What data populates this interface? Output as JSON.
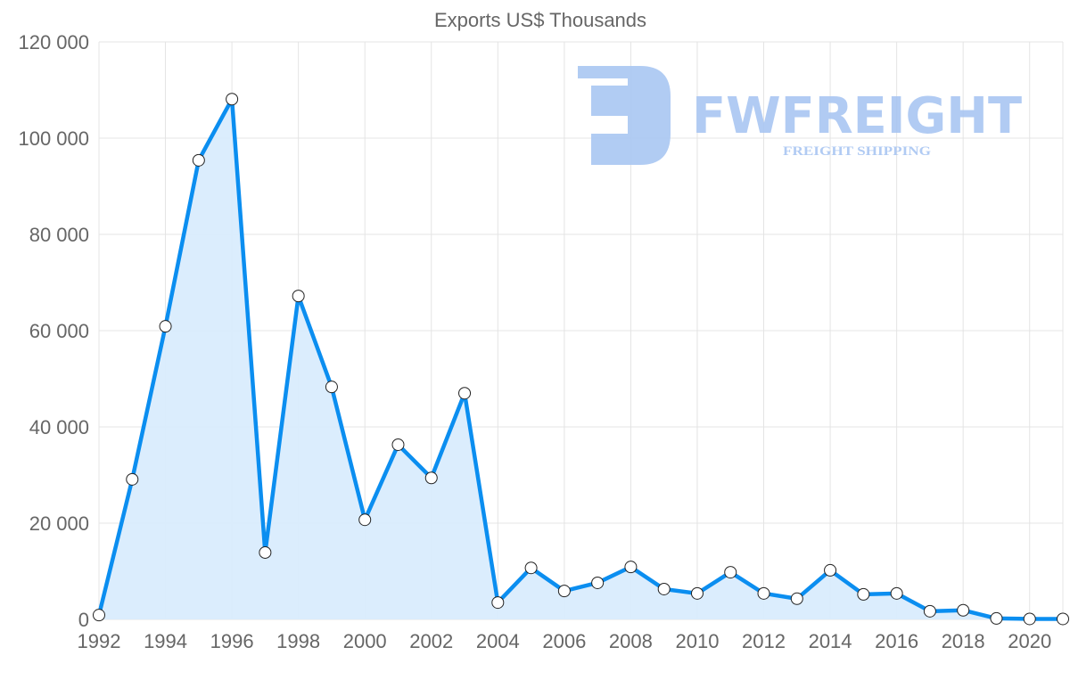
{
  "chart_data": {
    "type": "line",
    "title": "Exports US$ Thousands",
    "xlabel": "",
    "ylabel": "",
    "x": [
      1992,
      1993,
      1994,
      1995,
      1996,
      1997,
      1998,
      1999,
      2000,
      2001,
      2002,
      2003,
      2004,
      2005,
      2006,
      2007,
      2008,
      2009,
      2010,
      2011,
      2012,
      2013,
      2014,
      2015,
      2016,
      2017,
      2018,
      2019,
      2020,
      2021
    ],
    "series": [
      {
        "name": "Exports US$ Thousands",
        "values": [
          900,
          29100,
          60900,
          95400,
          108100,
          13900,
          67200,
          48300,
          20700,
          36300,
          29400,
          47000,
          3500,
          10700,
          5900,
          7600,
          10900,
          6300,
          5400,
          9800,
          5400,
          4300,
          10200,
          5200,
          5400,
          1700,
          1900,
          200,
          100,
          100
        ],
        "color": "#0b8ef0",
        "fill": "#d9ecfd"
      }
    ],
    "xlim": [
      1992,
      2021
    ],
    "ylim": [
      0,
      120000
    ],
    "y_ticks": [
      "0",
      "20 000",
      "40 000",
      "60 000",
      "80 000",
      "100 000",
      "120 000"
    ],
    "x_ticks": [
      "1992",
      "1994",
      "1996",
      "1998",
      "2000",
      "2002",
      "2004",
      "2006",
      "2008",
      "2010",
      "2012",
      "2014",
      "2016",
      "2018",
      "2020"
    ],
    "grid": true,
    "legend": "none"
  },
  "watermark": {
    "brand": "FWFREIGHT",
    "tagline": "FREIGHT SHIPPING",
    "color": "#a9c6f2"
  }
}
